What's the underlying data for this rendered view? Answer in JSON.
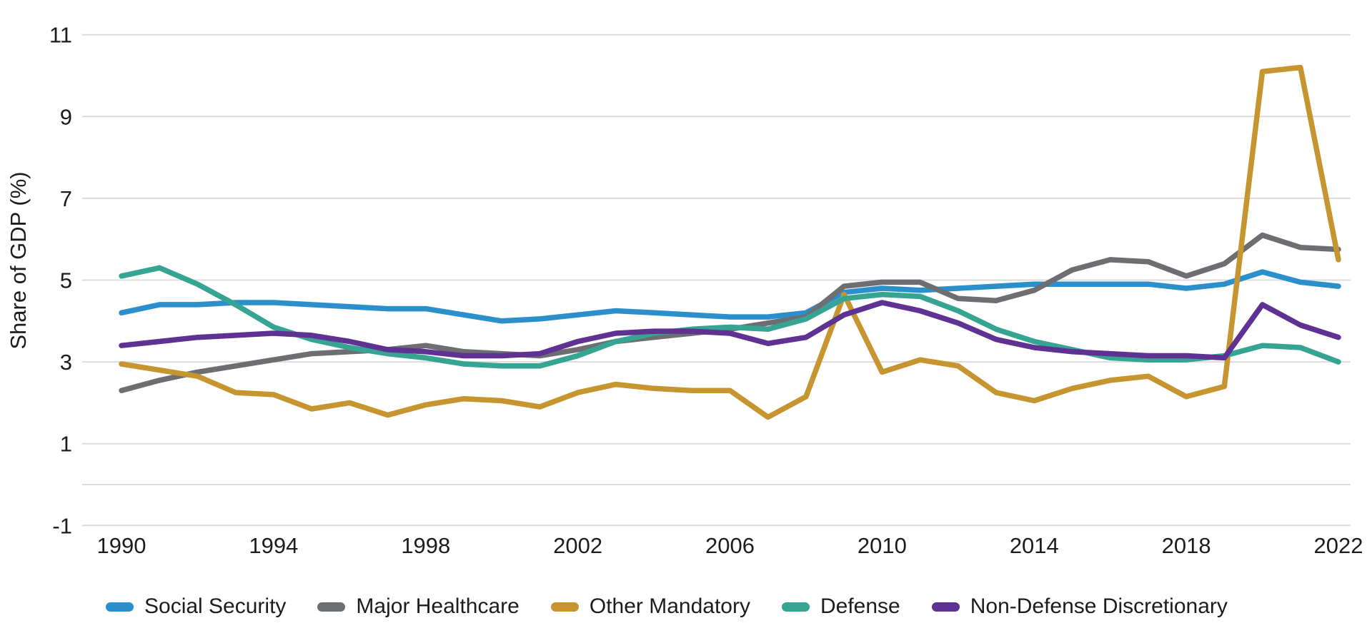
{
  "colors": {
    "background": "#FFFFFF",
    "gridline": "#DBDBDB",
    "text": "#1C1C1C"
  },
  "chart_data": {
    "type": "line",
    "title": "",
    "xlabel": "",
    "ylabel": "Share of GDP (%)",
    "x": [
      1990,
      1991,
      1992,
      1993,
      1994,
      1995,
      1996,
      1997,
      1998,
      1999,
      2000,
      2001,
      2002,
      2003,
      2004,
      2005,
      2006,
      2007,
      2008,
      2009,
      2010,
      2011,
      2012,
      2013,
      2014,
      2015,
      2016,
      2017,
      2018,
      2019,
      2020,
      2021,
      2022
    ],
    "x_tick_labels": [
      "1990",
      "1994",
      "1998",
      "2002",
      "2006",
      "2010",
      "2014",
      "2018",
      "2022"
    ],
    "y_ticks": [
      -1,
      1,
      3,
      5,
      7,
      9,
      11
    ],
    "ylim": [
      -1,
      11
    ],
    "grid": "horizontal",
    "zero_line": true,
    "legend_position": "bottom",
    "series": [
      {
        "name": "Social Security",
        "color": "#2B8FCC",
        "values": [
          4.2,
          4.4,
          4.4,
          4.45,
          4.45,
          4.4,
          4.35,
          4.3,
          4.3,
          4.15,
          4.0,
          4.05,
          4.15,
          4.25,
          4.2,
          4.15,
          4.1,
          4.1,
          4.2,
          4.7,
          4.8,
          4.75,
          4.8,
          4.85,
          4.9,
          4.9,
          4.9,
          4.9,
          4.8,
          4.9,
          5.2,
          4.95,
          4.85
        ]
      },
      {
        "name": "Major Healthcare",
        "color": "#6D6E71",
        "values": [
          2.3,
          2.55,
          2.75,
          2.9,
          3.05,
          3.2,
          3.25,
          3.3,
          3.4,
          3.25,
          3.2,
          3.15,
          3.3,
          3.5,
          3.6,
          3.7,
          3.8,
          3.95,
          4.1,
          4.85,
          4.95,
          4.95,
          4.55,
          4.5,
          4.75,
          5.25,
          5.5,
          5.45,
          5.1,
          5.4,
          6.1,
          5.8,
          5.75
        ]
      },
      {
        "name": "Other Mandatory",
        "color": "#C6952F",
        "values": [
          2.95,
          2.8,
          2.65,
          2.25,
          2.2,
          1.85,
          2.0,
          1.7,
          1.95,
          2.1,
          2.05,
          1.9,
          2.25,
          2.45,
          2.35,
          2.3,
          2.3,
          1.65,
          2.15,
          4.65,
          2.75,
          3.05,
          2.9,
          2.25,
          2.05,
          2.35,
          2.55,
          2.65,
          2.15,
          2.4,
          10.1,
          10.2,
          5.5
        ]
      },
      {
        "name": "Defense",
        "color": "#35A492",
        "values": [
          5.1,
          5.3,
          4.9,
          4.4,
          3.85,
          3.55,
          3.35,
          3.2,
          3.1,
          2.95,
          2.9,
          2.9,
          3.15,
          3.5,
          3.7,
          3.8,
          3.85,
          3.8,
          4.05,
          4.55,
          4.65,
          4.6,
          4.25,
          3.8,
          3.5,
          3.3,
          3.1,
          3.05,
          3.05,
          3.15,
          3.4,
          3.35,
          3.0
        ]
      },
      {
        "name": "Non-Defense Discretionary",
        "color": "#5E3192",
        "values": [
          3.4,
          3.5,
          3.6,
          3.65,
          3.7,
          3.65,
          3.5,
          3.3,
          3.25,
          3.15,
          3.15,
          3.2,
          3.5,
          3.7,
          3.75,
          3.75,
          3.7,
          3.45,
          3.6,
          4.15,
          4.45,
          4.25,
          3.95,
          3.55,
          3.35,
          3.25,
          3.2,
          3.15,
          3.15,
          3.1,
          4.4,
          3.9,
          3.6
        ]
      }
    ]
  }
}
